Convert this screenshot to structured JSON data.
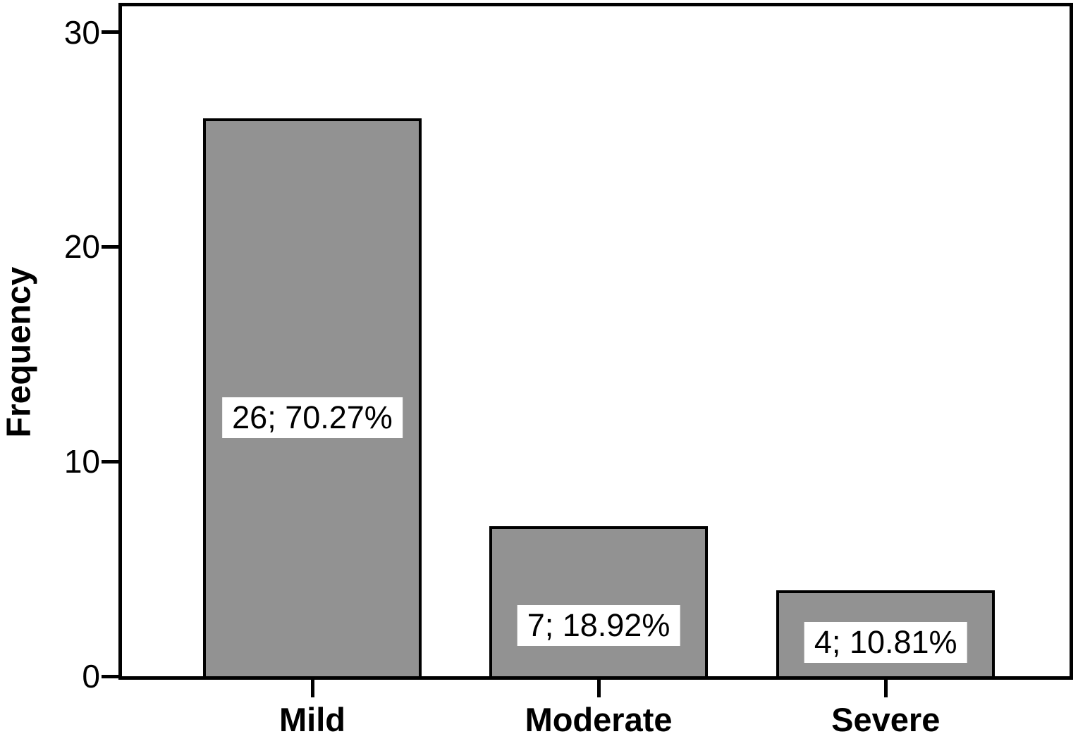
{
  "chart_data": {
    "type": "bar",
    "title": "",
    "categories": [
      "Mild",
      "Moderate",
      "Severe"
    ],
    "values": [
      26,
      7,
      4
    ],
    "percentages": [
      70.27,
      18.92,
      10.81
    ],
    "bar_labels": [
      "26; 70.27%",
      "7; 18.92%",
      "4; 10.81%"
    ],
    "xlabel": "",
    "ylabel": "Frequency",
    "yticks": [
      0,
      10,
      20,
      30
    ],
    "ylim": [
      0,
      31.2
    ],
    "grid": false,
    "legend": "none",
    "colors": {
      "bar_fill": "#929292",
      "bar_border": "#000000",
      "axis": "#000000",
      "label_background": "#ffffff",
      "text": "#000000",
      "plot_background": "#ffffff"
    },
    "layout_hints": {
      "bar_center_fracs": [
        0.2009,
        0.503,
        0.806
      ],
      "bar_width_frac": 0.2307,
      "label_center_fracs_of_bar": [
        0.465,
        0.343,
        0.41
      ],
      "box_around_plot": true
    }
  }
}
